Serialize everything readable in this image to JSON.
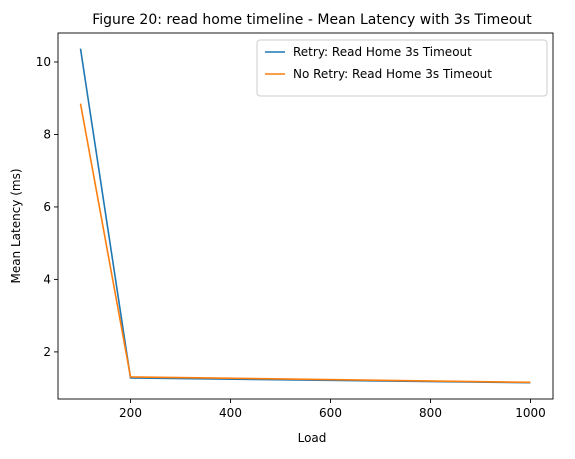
{
  "chart_data": {
    "type": "line",
    "title": "Figure 20: read home timeline - Mean Latency with 3s Timeout",
    "xlabel": "Load",
    "ylabel": "Mean Latency (ms)",
    "xlim": [
      55,
      1045
    ],
    "ylim": [
      0.7,
      10.8
    ],
    "xticks": [
      200,
      400,
      600,
      800,
      1000
    ],
    "yticks": [
      2,
      4,
      6,
      8,
      10
    ],
    "grid": false,
    "legend_position": "upper-right",
    "x": [
      100,
      200,
      1000
    ],
    "series": [
      {
        "name": "Retry: Read Home 3s Timeout",
        "color": "#1f77b4",
        "values": [
          10.37,
          1.28,
          1.15
        ]
      },
      {
        "name": "No Retry: Read Home 3s Timeout",
        "color": "#ff7f0e",
        "values": [
          8.85,
          1.31,
          1.16
        ]
      }
    ]
  }
}
